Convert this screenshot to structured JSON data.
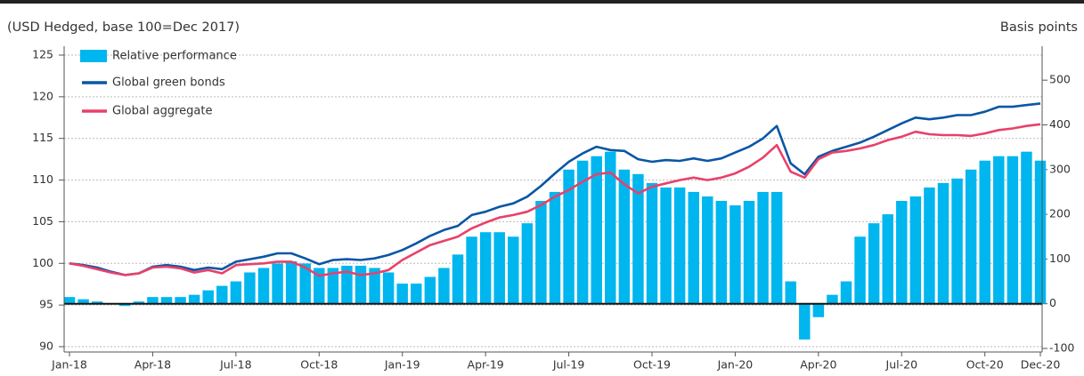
{
  "chart_data": {
    "type": "combo",
    "subtitle": "(USD Hedged, base 100=Dec 2017)",
    "y2_label": "Basis points",
    "x": [
      0,
      0.5,
      1,
      1.5,
      2,
      2.5,
      3,
      3.5,
      4,
      4.5,
      5,
      5.5,
      6,
      6.5,
      7,
      7.5,
      8,
      8.5,
      9,
      9.5,
      10,
      10.5,
      11,
      11.5,
      12,
      12.5,
      13,
      13.5,
      14,
      14.5,
      15,
      15.5,
      16,
      16.5,
      17,
      17.5,
      18,
      18.5,
      19,
      19.5,
      20,
      20.5,
      21,
      21.5,
      22,
      22.5,
      23,
      23.5,
      24,
      24.5,
      25,
      25.5,
      26,
      26.5,
      27,
      27.5,
      28,
      28.5,
      29,
      29.5,
      30,
      30.5,
      31,
      31.5,
      32,
      32.5,
      33,
      33.5,
      34,
      34.5,
      35
    ],
    "series": [
      {
        "name": "Relative performance",
        "type": "bar",
        "axis": "y2",
        "color": "#00b6ef",
        "values": [
          15,
          10,
          5,
          0,
          -5,
          5,
          15,
          15,
          15,
          20,
          30,
          40,
          50,
          70,
          80,
          90,
          95,
          90,
          80,
          80,
          85,
          85,
          80,
          70,
          45,
          45,
          60,
          80,
          110,
          150,
          160,
          160,
          150,
          180,
          230,
          250,
          300,
          320,
          330,
          340,
          300,
          290,
          270,
          260,
          260,
          250,
          240,
          230,
          220,
          230,
          250,
          250,
          50,
          -80,
          -30,
          20,
          50,
          150,
          180,
          200,
          230,
          240,
          260,
          270,
          280,
          300,
          320,
          330,
          330,
          340,
          320
        ]
      },
      {
        "name": "Global green bonds",
        "type": "line",
        "color": "#0a56a5",
        "values": [
          100,
          99.8,
          99.5,
          99,
          98.6,
          98.8,
          99.6,
          99.8,
          99.6,
          99.2,
          99.5,
          99.3,
          100.2,
          100.5,
          100.8,
          101.2,
          101.2,
          100.6,
          99.9,
          100.4,
          100.5,
          100.4,
          100.6,
          101,
          101.6,
          102.4,
          103.3,
          104,
          104.5,
          105.8,
          106.2,
          106.8,
          107.2,
          108,
          109.3,
          110.8,
          112.2,
          113.2,
          114,
          113.6,
          113.5,
          112.5,
          112.2,
          112.4,
          112.3,
          112.6,
          112.3,
          112.6,
          113.3,
          114,
          115,
          116.5,
          112,
          110.7,
          112.8,
          113.5,
          114,
          114.5,
          115.2,
          116,
          116.8,
          117.5,
          117.3,
          117.5,
          117.8,
          117.8,
          118.2,
          118.8,
          118.8,
          119,
          119.2
        ]
      },
      {
        "name": "Global aggregate",
        "type": "line",
        "color": "#e8416a",
        "values": [
          100,
          99.7,
          99.3,
          98.9,
          98.6,
          98.8,
          99.5,
          99.6,
          99.4,
          98.9,
          99.2,
          98.8,
          99.8,
          99.9,
          100,
          100.2,
          100.2,
          99.5,
          98.5,
          98.8,
          99,
          98.6,
          98.8,
          99.2,
          100.4,
          101.3,
          102.2,
          102.7,
          103.2,
          104.2,
          104.9,
          105.5,
          105.8,
          106.2,
          107,
          108,
          108.8,
          109.8,
          110.7,
          110.9,
          109.5,
          108.4,
          109.2,
          109.6,
          110,
          110.3,
          110,
          110.3,
          110.8,
          111.6,
          112.7,
          114.2,
          111,
          110.3,
          112.5,
          113.3,
          113.5,
          113.8,
          114.2,
          114.8,
          115.2,
          115.8,
          115.5,
          115.4,
          115.4,
          115.3,
          115.6,
          116,
          116.2,
          116.5,
          116.7
        ]
      }
    ],
    "xlim": [
      0,
      35
    ],
    "xticks": [
      {
        "value": 0,
        "label": "Jan-18"
      },
      {
        "value": 3,
        "label": "Apr-18"
      },
      {
        "value": 6,
        "label": "Jul-18"
      },
      {
        "value": 9,
        "label": "Oct-18"
      },
      {
        "value": 12,
        "label": "Jan-19"
      },
      {
        "value": 15,
        "label": "Apr-19"
      },
      {
        "value": 18,
        "label": "Jul-19"
      },
      {
        "value": 21,
        "label": "Oct-19"
      },
      {
        "value": 24,
        "label": "Jan-20"
      },
      {
        "value": 27,
        "label": "Apr-20"
      },
      {
        "value": 30,
        "label": "Jul-20"
      },
      {
        "value": 33,
        "label": "Oct-20"
      },
      {
        "value": 35,
        "label": "Dec-20"
      }
    ],
    "ylim": [
      90,
      125
    ],
    "yticks": [
      90,
      95,
      100,
      105,
      110,
      115,
      120,
      125
    ],
    "y2lim": [
      -96,
      556
    ],
    "y2ticks": [
      -100,
      0,
      100,
      200,
      300,
      400,
      500
    ],
    "grid": true
  }
}
